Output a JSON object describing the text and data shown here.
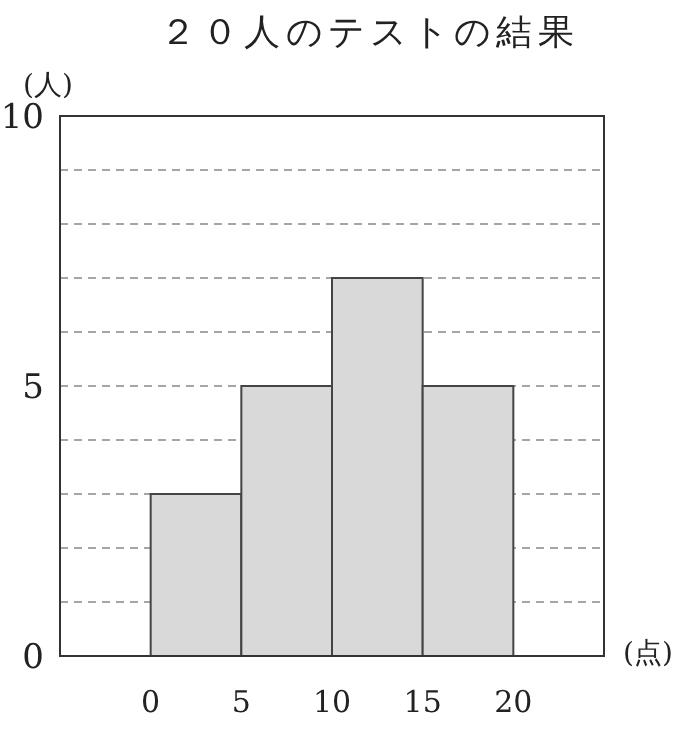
{
  "chart_data": {
    "type": "histogram",
    "title": "２０人のテストの結果",
    "ylabel": "(人)",
    "xlabel": "(点)",
    "bins": [
      0,
      5,
      10,
      15,
      20
    ],
    "values": [
      3,
      5,
      7,
      5
    ],
    "color": "#d9d9d9",
    "xlim": [
      -5,
      25
    ],
    "xticks": [
      0,
      5,
      10,
      15,
      20
    ],
    "ylim": [
      0,
      10
    ],
    "yticks": [
      0,
      {
        "value": 1,
        "label": null
      },
      {
        "value": 2,
        "label": null
      },
      {
        "value": 3,
        "label": null
      },
      {
        "value": 4,
        "label": null
      },
      5,
      {
        "value": 6,
        "label": null
      },
      {
        "value": 7,
        "label": null
      },
      {
        "value": 8,
        "label": null
      },
      {
        "value": 9,
        "label": null
      },
      10
    ],
    "grid": "y"
  }
}
